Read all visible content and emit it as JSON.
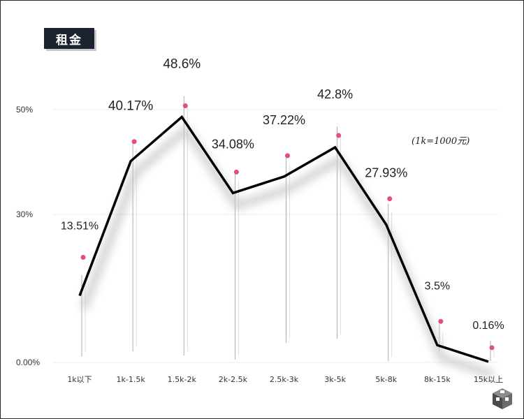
{
  "chart_data": {
    "type": "line",
    "title": "租金",
    "note": "(1k=1000元)",
    "categories": [
      "1k以下",
      "1k-1.5k",
      "1.5k-2k",
      "2k-2.5k",
      "2.5k-3k",
      "3k-5k",
      "5k-8k",
      "8k-15k",
      "15k以上"
    ],
    "series": [
      {
        "values": [
          13.51,
          40.17,
          48.6,
          34.08,
          37.22,
          42.8,
          27.93,
          3.5,
          0.16
        ]
      }
    ],
    "data_labels": [
      "13.51%",
      "40.17%",
      "48.6%",
      "34.08%",
      "37.22%",
      "42.8%",
      "27.93%",
      "3.5%",
      "0.16%"
    ],
    "yticks": [
      "0.00%",
      "30%",
      "50%"
    ],
    "ylim": [
      0,
      60
    ],
    "grid": true,
    "colors": {
      "line": "#000000",
      "marker": "#e0507a",
      "title_bg": "#1d2230"
    }
  }
}
